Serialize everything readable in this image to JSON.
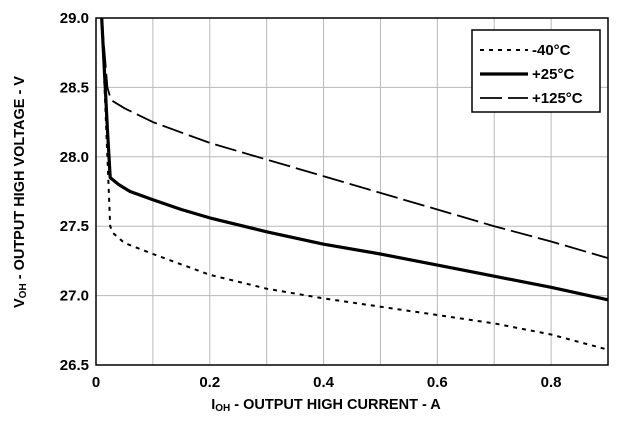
{
  "chart_data": {
    "type": "line",
    "xlabel_main": "I",
    "xlabel_sub": "OH",
    "xlabel_rest": " - OUTPUT HIGH CURRENT - A",
    "ylabel_main": "V",
    "ylabel_sub": "OH",
    "ylabel_rest": " - OUTPUT HIGH VOLTAGE - V",
    "xlim": [
      0,
      0.9
    ],
    "ylim": [
      26.5,
      29.0
    ],
    "x_ticks": [
      0,
      0.2,
      0.4,
      0.6,
      0.8
    ],
    "x_tick_labels": [
      "0",
      "0.2",
      "0.4",
      "0.6",
      "0.8"
    ],
    "x_grid": [
      0,
      0.1,
      0.2,
      0.3,
      0.4,
      0.5,
      0.6,
      0.7,
      0.8,
      0.9
    ],
    "y_ticks": [
      26.5,
      27.0,
      27.5,
      28.0,
      28.5,
      29.0
    ],
    "y_tick_labels": [
      "26.5",
      "27.0",
      "27.5",
      "28.0",
      "28.5",
      "29.0"
    ],
    "grid": true,
    "legend_position": "top-right",
    "series": [
      {
        "name": "-40°C",
        "style": "dotted",
        "x": [
          0.01,
          0.02,
          0.025,
          0.03,
          0.05,
          0.1,
          0.2,
          0.3,
          0.4,
          0.5,
          0.6,
          0.7,
          0.8,
          0.9
        ],
        "y": [
          29.0,
          28.0,
          27.5,
          27.45,
          27.38,
          27.3,
          27.15,
          27.05,
          26.98,
          26.92,
          26.86,
          26.8,
          26.72,
          26.61
        ]
      },
      {
        "name": "+25°C",
        "style": "solid",
        "x": [
          0.01,
          0.02,
          0.025,
          0.04,
          0.06,
          0.1,
          0.15,
          0.2,
          0.3,
          0.4,
          0.5,
          0.6,
          0.7,
          0.8,
          0.9
        ],
        "y": [
          29.0,
          28.2,
          27.85,
          27.8,
          27.75,
          27.69,
          27.62,
          27.56,
          27.46,
          27.37,
          27.3,
          27.22,
          27.14,
          27.06,
          26.97
        ]
      },
      {
        "name": "+125°C",
        "style": "dashdot",
        "x": [
          0.01,
          0.02,
          0.025,
          0.03,
          0.05,
          0.1,
          0.2,
          0.3,
          0.4,
          0.5,
          0.6,
          0.7,
          0.8,
          0.9
        ],
        "y": [
          29.0,
          28.5,
          28.43,
          28.4,
          28.35,
          28.25,
          28.1,
          27.98,
          27.86,
          27.74,
          27.62,
          27.5,
          27.39,
          27.27
        ]
      }
    ]
  }
}
